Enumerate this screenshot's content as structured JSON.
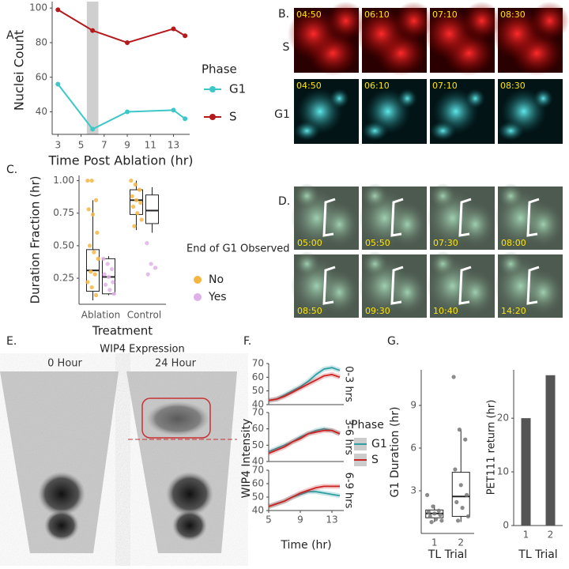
{
  "panel_labels": [
    "A.",
    "B.",
    "C.",
    "D.",
    "E.",
    "F.",
    "G."
  ],
  "panel_b": {
    "row_labels": [
      "S",
      "G1"
    ],
    "timestamps": [
      "04:50",
      "06:10",
      "07:10",
      "08:30"
    ]
  },
  "panel_d": {
    "timestamps": [
      "05:00",
      "05:50",
      "07:30",
      "08:00",
      "08:50",
      "09:30",
      "10:40",
      "14:20"
    ]
  },
  "panel_e": {
    "title": "WIP4 Expression",
    "labels": [
      "0 Hour",
      "24 Hour"
    ]
  },
  "chart_data": [
    {
      "type": "line",
      "xlabel": "Time Post Ablation (hr)",
      "ylabel": "Nuclei Count",
      "legend_title": "Phase",
      "x": [
        3,
        6,
        9,
        13,
        14
      ],
      "series": [
        {
          "name": "G1",
          "color": "#3cc8c8",
          "values": [
            56,
            30,
            40,
            41,
            36
          ]
        },
        {
          "name": "S",
          "color": "#b5191c",
          "values": [
            99,
            87,
            80,
            88,
            84
          ]
        }
      ],
      "highlight": [
        5.5,
        6.5
      ],
      "xlim": [
        2.5,
        14.4
      ],
      "xticks": [
        3,
        5,
        7,
        9,
        11,
        13
      ],
      "ylim": [
        27,
        101
      ],
      "yticks": [
        40,
        60,
        80,
        100
      ]
    },
    {
      "type": "box",
      "xlabel": "Treatment",
      "ylabel": "Duration Fraction (hr)",
      "legend_title": "End of G1 Observed",
      "categories": [
        "Ablation",
        "Control"
      ],
      "series": [
        {
          "name": "No",
          "color": "#f5b642",
          "boxes": [
            {
              "min": 0.08,
              "q1": 0.15,
              "median": 0.31,
              "q3": 0.47,
              "max": 0.85,
              "points": [
                1.0,
                1.0,
                0.85,
                0.78,
                0.74,
                0.6,
                0.5,
                0.45,
                0.4,
                0.3,
                0.28,
                0.22,
                0.18,
                0.12
              ]
            },
            {
              "min": 0.62,
              "q1": 0.74,
              "median": 0.85,
              "q3": 0.93,
              "max": 1.0,
              "points": [
                1.0,
                0.97,
                0.93,
                0.88,
                0.85,
                0.83,
                0.8,
                0.75,
                0.7,
                0.65
              ]
            }
          ]
        },
        {
          "name": "Yes",
          "color": "#e0b0e8",
          "boxes": [
            {
              "min": 0.12,
              "q1": 0.13,
              "median": 0.26,
              "q3": 0.4,
              "max": 0.42,
              "points": [
                0.4,
                0.36,
                0.32,
                0.28,
                0.26,
                0.22,
                0.2,
                0.16,
                0.13
              ]
            },
            {
              "min": 0.6,
              "q1": 0.67,
              "median": 0.77,
              "q3": 0.89,
              "max": 0.95,
              "points": [
                0.52,
                0.36,
                0.33,
                0.28
              ]
            }
          ]
        }
      ],
      "ylim": [
        0.05,
        1.04
      ],
      "yticks": [
        {
          "value": 0.25,
          "label": "0.25"
        },
        {
          "value": 0.5,
          "label": "0.50"
        },
        {
          "value": 0.75,
          "label": "0.75"
        },
        {
          "value": 1.0,
          "label": "1.00"
        }
      ]
    },
    {
      "type": "line_facets",
      "xlabel": "Time (hr)",
      "ylabel": "WIP4 Intensity",
      "legend_title": "Phase",
      "x": [
        5,
        6,
        7,
        8,
        9,
        10,
        11,
        12,
        13,
        14
      ],
      "xlim": [
        5,
        14.5
      ],
      "xticks": [
        5,
        9,
        13
      ],
      "ylim": [
        40,
        70
      ],
      "yticks": [
        40,
        50,
        60,
        70
      ],
      "facets": [
        {
          "label": "0-3 hrs",
          "series": [
            {
              "name": "G1",
              "color": "#2f9ea3",
              "values": [
                43,
                44,
                47,
                50,
                53,
                57,
                62,
                66,
                67,
                65
              ]
            },
            {
              "name": "S",
              "color": "#cc2222",
              "values": [
                43,
                44,
                46,
                49,
                52,
                55,
                58,
                61,
                62,
                60
              ]
            }
          ]
        },
        {
          "label": "3-6 hrs",
          "series": [
            {
              "name": "G1",
              "color": "#2f9ea3",
              "values": [
                46,
                48,
                50,
                52,
                55,
                57,
                59,
                60,
                59,
                57
              ]
            },
            {
              "name": "S",
              "color": "#cc2222",
              "values": [
                45,
                47,
                49,
                52,
                54,
                57,
                58,
                59,
                59,
                57
              ]
            }
          ]
        },
        {
          "label": "6-9 hrs",
          "series": [
            {
              "name": "G1",
              "color": "#2f9ea3",
              "values": [
                43,
                45,
                47,
                50,
                52,
                54,
                54,
                53,
                52,
                51
              ]
            },
            {
              "name": "S",
              "color": "#cc2222",
              "values": [
                43,
                45,
                47,
                50,
                53,
                55,
                57,
                58,
                58,
                58
              ]
            }
          ]
        }
      ]
    },
    {
      "type": "box",
      "xlabel": "TL Trial",
      "ylabel": "G1 Duration (hr)",
      "categories": [
        "1",
        "2"
      ],
      "series": [
        {
          "color": "#777777",
          "boxes": [
            {
              "min": 0.8,
              "q1": 1.1,
              "median": 1.4,
              "q3": 1.65,
              "max": 2.0,
              "points": [
                2.7,
                1.9,
                1.6,
                1.5,
                1.4,
                1.3,
                1.2,
                1.0,
                0.9,
                0.8
              ]
            },
            {
              "min": 0.8,
              "q1": 1.2,
              "median": 2.6,
              "q3": 4.3,
              "max": 7.3,
              "points": [
                11.0,
                7.3,
                6.6,
                4.5,
                3.4,
                2.7,
                2.2,
                1.8,
                1.2,
                0.9
              ]
            }
          ]
        }
      ],
      "ylim": [
        0,
        11.5
      ],
      "yticks": [
        3,
        6,
        9
      ]
    },
    {
      "type": "bar",
      "xlabel": "TL Trial",
      "ylabel": "PET111 return (hr)",
      "categories": [
        "1",
        "2"
      ],
      "values": [
        20,
        28
      ],
      "color": "#555555",
      "ylim": [
        0,
        29
      ],
      "yticks": [
        0,
        10,
        20
      ]
    }
  ]
}
